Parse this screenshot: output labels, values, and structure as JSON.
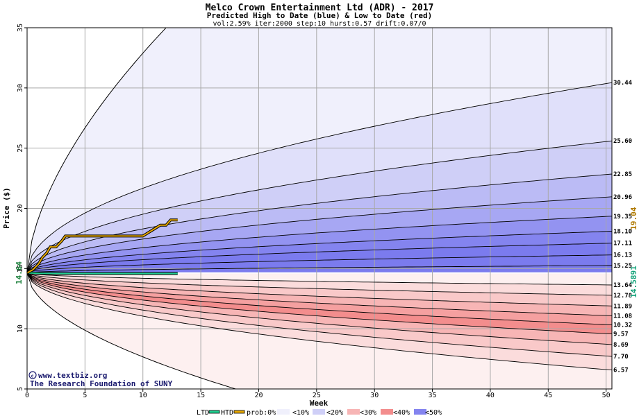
{
  "chart_data": {
    "type": "area",
    "title": "Melco Crown Entertainment Ltd (ADR) - 2017",
    "subtitle": "Predicted High to Date (blue) &  Low to Date (red)",
    "params": "vol:2.59% iter:2000 step:10 hurst:0.57 drift:0.07/0",
    "xlabel": "Week",
    "ylabel": "Price ($)",
    "xlim": [
      0,
      50.5
    ],
    "ylim": [
      5,
      35
    ],
    "x_ticks": [
      0,
      5,
      10,
      15,
      20,
      25,
      30,
      35,
      40,
      45,
      50
    ],
    "y_ticks": [
      5,
      10,
      15,
      20,
      25,
      30,
      35
    ],
    "start_price": 14.64,
    "start_price_label": "14.64",
    "last_high_label": "19.04",
    "last_low_label": "14.5891",
    "high_quantile_end_labels": [
      "30.44",
      "25.60",
      "22.85",
      "20.96",
      "19.35",
      "18.10",
      "17.11",
      "16.13",
      "15.25"
    ],
    "high_quantile_end_values": [
      30.44,
      25.6,
      22.85,
      20.96,
      19.35,
      18.1,
      17.11,
      16.13,
      15.25
    ],
    "low_quantile_end_labels": [
      "13.64",
      "12.78",
      "11.89",
      "11.08",
      "10.32",
      "9.57",
      "8.69",
      "7.70",
      "6.57"
    ],
    "low_quantile_end_values": [
      13.64,
      12.78,
      11.89,
      11.08,
      10.32,
      9.57,
      8.69,
      7.7,
      6.57
    ],
    "envelope": {
      "upper_reaches_35_at_week": 12,
      "lower_reaches_5_at_week": 18
    },
    "high_to_date": {
      "name": "HTD",
      "x": [
        0,
        0.5,
        1,
        1.3,
        1.7,
        2,
        2.5,
        3,
        3.3,
        6,
        9,
        10,
        10.5,
        11,
        11.5,
        12,
        12.4,
        13
      ],
      "y": [
        14.64,
        14.9,
        15.4,
        15.9,
        16.3,
        16.8,
        16.8,
        17.3,
        17.7,
        17.7,
        17.7,
        17.7,
        18.0,
        18.3,
        18.6,
        18.6,
        19.04,
        19.04
      ]
    },
    "low_to_date": {
      "name": "LTD",
      "x": [
        0,
        0.5,
        1,
        3,
        6,
        9,
        12,
        13
      ],
      "y": [
        14.64,
        14.62,
        14.6,
        14.59,
        14.5891,
        14.5891,
        14.5891,
        14.5891
      ]
    },
    "legend": [
      "LTD",
      "HTD",
      "prob:0%",
      "<10%",
      "<20%",
      "<30%",
      "<40%",
      "<50%"
    ],
    "colors": {
      "htd": "#e6a800",
      "ltd": "#1fcf8f",
      "blue_bands": [
        "#f0f0fc",
        "#e0e0fa",
        "#cfcff7",
        "#bbbbf5",
        "#a7a7f3",
        "#9393f1",
        "#8484ef",
        "#7b7bee"
      ],
      "red_bands": [
        "#fdf0f0",
        "#fbdcdc",
        "#f9c9c9",
        "#f7b5b5",
        "#f5a0a0",
        "#f38d8d",
        "#f27e7e",
        "#f17474"
      ],
      "gridline": "#a8a8a8"
    },
    "credit_line1": "www.textbiz.org",
    "credit_line2": "The Research Foundation of SUNY"
  }
}
